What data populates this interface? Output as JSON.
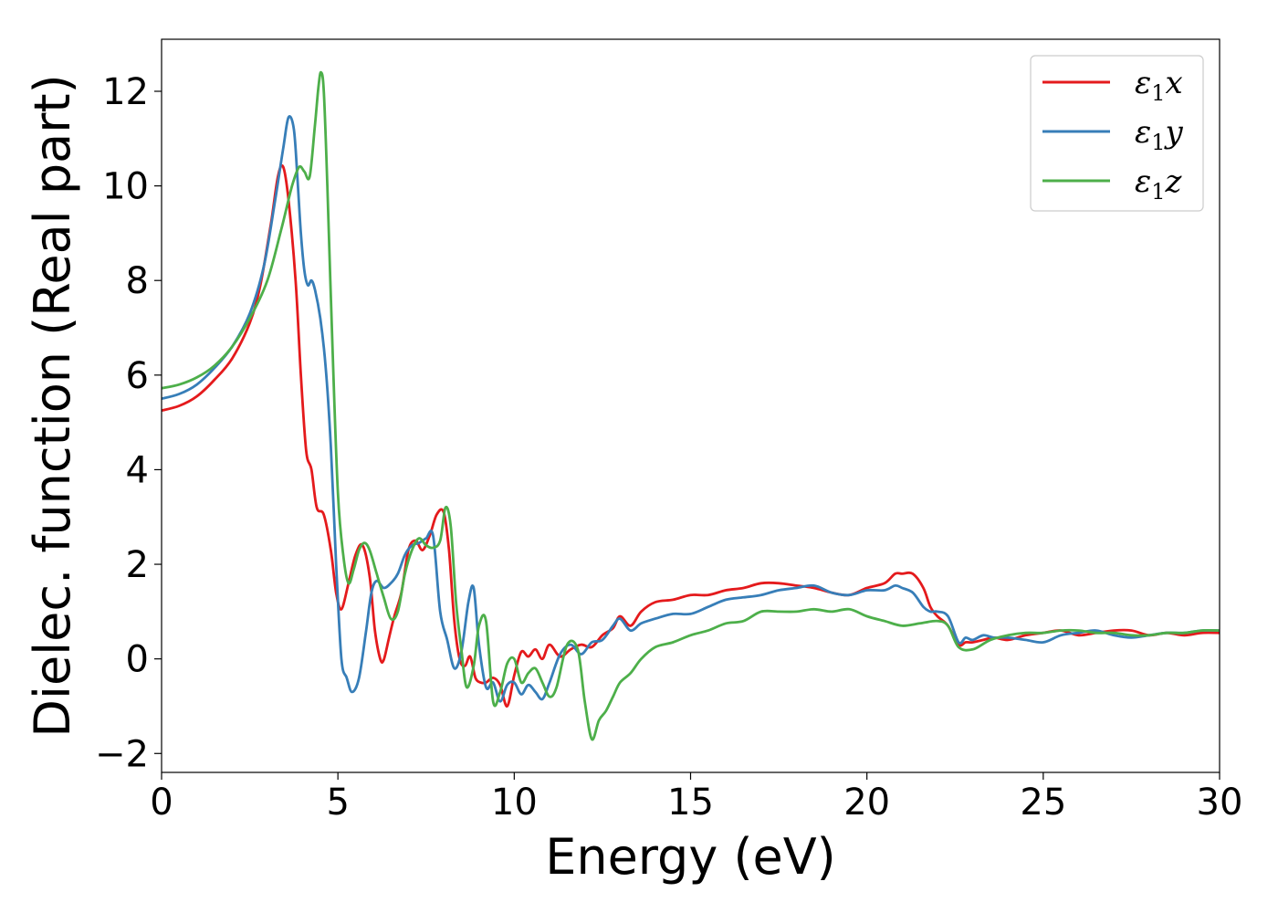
{
  "chart_data": {
    "type": "line",
    "title": "",
    "xlabel": "Energy (eV)",
    "ylabel": "Dielec. function (Real part)",
    "xlim": [
      0,
      30
    ],
    "ylim": [
      -2.4,
      13.1
    ],
    "xticks": [
      0,
      5,
      10,
      15,
      20,
      25,
      30
    ],
    "xtick_labels": [
      "0",
      "5",
      "10",
      "15",
      "20",
      "25",
      "30"
    ],
    "yticks": [
      -2,
      0,
      2,
      4,
      6,
      8,
      10,
      12
    ],
    "ytick_labels": [
      "−2",
      "0",
      "2",
      "4",
      "6",
      "8",
      "10",
      "12"
    ],
    "grid": false,
    "legend_position": "top-right",
    "series": [
      {
        "name": "ε1x",
        "name_base": "ε",
        "name_sub": "1",
        "name_var": "x",
        "color": "#e41a1c",
        "x": [
          0,
          0.5,
          1,
          1.5,
          2,
          2.5,
          2.8,
          3.1,
          3.3,
          3.45,
          3.6,
          3.8,
          3.95,
          4.1,
          4.25,
          4.4,
          4.6,
          4.8,
          4.95,
          5.1,
          5.3,
          5.5,
          5.7,
          5.9,
          6.05,
          6.2,
          6.3,
          6.45,
          6.6,
          6.8,
          7.0,
          7.2,
          7.4,
          7.6,
          7.8,
          8.0,
          8.15,
          8.3,
          8.45,
          8.6,
          8.75,
          8.9,
          9.05,
          9.2,
          9.4,
          9.6,
          9.8,
          10.0,
          10.2,
          10.4,
          10.6,
          10.8,
          11.0,
          11.3,
          11.6,
          11.9,
          12.2,
          12.5,
          12.8,
          13.0,
          13.3,
          13.6,
          14.0,
          14.5,
          15.0,
          15.5,
          16.0,
          16.5,
          17.0,
          17.5,
          18.0,
          18.5,
          19.0,
          19.5,
          20.0,
          20.5,
          20.8,
          21.0,
          21.3,
          21.6,
          21.8,
          22.0,
          22.3,
          22.6,
          22.8,
          23.0,
          23.3,
          23.6,
          24.0,
          24.5,
          25.0,
          25.5,
          26.0,
          26.5,
          27.0,
          27.5,
          28.0,
          28.5,
          29.0,
          29.5,
          30.0
        ],
        "y": [
          5.25,
          5.35,
          5.55,
          5.9,
          6.35,
          7.1,
          7.9,
          9.2,
          10.2,
          10.4,
          9.7,
          8.0,
          6.0,
          4.4,
          4.0,
          3.2,
          3.05,
          2.3,
          1.4,
          1.05,
          1.6,
          2.2,
          2.4,
          1.75,
          0.6,
          0.0,
          -0.02,
          0.45,
          0.9,
          1.4,
          2.3,
          2.5,
          2.3,
          2.6,
          3.05,
          3.1,
          2.3,
          0.8,
          0.0,
          -0.15,
          0.05,
          -0.4,
          -0.5,
          -0.5,
          -0.4,
          -0.55,
          -1.0,
          -0.35,
          0.15,
          0.05,
          0.2,
          0.0,
          0.3,
          0.05,
          0.2,
          0.3,
          0.25,
          0.5,
          0.65,
          0.9,
          0.7,
          1.0,
          1.2,
          1.25,
          1.35,
          1.35,
          1.45,
          1.5,
          1.6,
          1.6,
          1.55,
          1.5,
          1.4,
          1.35,
          1.5,
          1.6,
          1.8,
          1.8,
          1.8,
          1.5,
          1.1,
          0.9,
          0.7,
          0.3,
          0.35,
          0.35,
          0.4,
          0.45,
          0.4,
          0.5,
          0.55,
          0.6,
          0.5,
          0.55,
          0.6,
          0.6,
          0.5,
          0.55,
          0.5,
          0.55,
          0.55
        ]
      },
      {
        "name": "ε1y",
        "name_base": "ε",
        "name_sub": "1",
        "name_var": "y",
        "color": "#377eb8",
        "x": [
          0,
          0.5,
          1,
          1.5,
          2,
          2.5,
          2.9,
          3.2,
          3.45,
          3.6,
          3.75,
          3.85,
          3.95,
          4.05,
          4.15,
          4.25,
          4.35,
          4.5,
          4.65,
          4.8,
          4.95,
          5.1,
          5.25,
          5.4,
          5.6,
          5.8,
          5.95,
          6.1,
          6.3,
          6.5,
          6.7,
          6.9,
          7.1,
          7.3,
          7.5,
          7.7,
          7.9,
          8.1,
          8.3,
          8.5,
          8.7,
          8.85,
          9.0,
          9.2,
          9.4,
          9.6,
          9.8,
          10.0,
          10.2,
          10.4,
          10.6,
          10.8,
          11.0,
          11.3,
          11.6,
          11.9,
          12.2,
          12.5,
          12.8,
          13.0,
          13.3,
          13.6,
          14.0,
          14.5,
          15.0,
          15.5,
          16.0,
          16.5,
          17.0,
          17.5,
          18.0,
          18.5,
          19.0,
          19.5,
          20.0,
          20.5,
          20.8,
          21.0,
          21.3,
          21.6,
          21.8,
          22.0,
          22.3,
          22.6,
          22.8,
          23.0,
          23.3,
          23.6,
          24.0,
          24.5,
          25.0,
          25.5,
          26.0,
          26.5,
          27.0,
          27.5,
          28.0,
          28.5,
          29.0,
          29.5,
          30.0
        ],
        "y": [
          5.5,
          5.6,
          5.8,
          6.15,
          6.6,
          7.3,
          8.3,
          9.6,
          10.8,
          11.45,
          11.2,
          10.2,
          9.0,
          8.2,
          7.9,
          8.0,
          7.8,
          7.2,
          6.2,
          4.5,
          2.0,
          0.0,
          -0.4,
          -0.7,
          -0.4,
          0.6,
          1.4,
          1.65,
          1.5,
          1.6,
          1.8,
          2.2,
          2.4,
          2.45,
          2.55,
          2.6,
          1.0,
          0.4,
          -0.2,
          0.15,
          1.2,
          1.5,
          0.3,
          -0.6,
          -0.5,
          -0.9,
          -0.55,
          -0.5,
          -0.75,
          -0.55,
          -0.7,
          -0.85,
          -0.5,
          0.1,
          0.3,
          0.1,
          0.35,
          0.4,
          0.7,
          0.85,
          0.6,
          0.75,
          0.85,
          0.95,
          0.95,
          1.1,
          1.25,
          1.3,
          1.35,
          1.45,
          1.5,
          1.55,
          1.4,
          1.35,
          1.45,
          1.45,
          1.55,
          1.5,
          1.4,
          1.1,
          1.0,
          1.0,
          0.9,
          0.35,
          0.45,
          0.4,
          0.5,
          0.45,
          0.45,
          0.4,
          0.35,
          0.5,
          0.55,
          0.6,
          0.5,
          0.45,
          0.5,
          0.55,
          0.55,
          0.6,
          0.6
        ]
      },
      {
        "name": "ε1z",
        "name_base": "ε",
        "name_sub": "1",
        "name_var": "z",
        "color": "#4daf4a",
        "x": [
          0,
          0.5,
          1,
          1.5,
          2,
          2.5,
          3.0,
          3.4,
          3.7,
          3.9,
          4.05,
          4.2,
          4.35,
          4.45,
          4.52,
          4.6,
          4.7,
          4.85,
          5.0,
          5.15,
          5.3,
          5.45,
          5.6,
          5.75,
          5.9,
          6.1,
          6.3,
          6.5,
          6.7,
          6.9,
          7.1,
          7.3,
          7.5,
          7.7,
          7.9,
          8.05,
          8.2,
          8.35,
          8.5,
          8.65,
          8.85,
          9.0,
          9.2,
          9.4,
          9.6,
          9.8,
          10.0,
          10.2,
          10.4,
          10.6,
          10.8,
          11.0,
          11.2,
          11.5,
          11.8,
          12.0,
          12.2,
          12.4,
          12.6,
          12.8,
          13.0,
          13.3,
          13.6,
          14.0,
          14.5,
          15.0,
          15.5,
          16.0,
          16.5,
          17.0,
          17.5,
          18.0,
          18.5,
          19.0,
          19.5,
          20.0,
          20.5,
          21.0,
          21.5,
          22.0,
          22.3,
          22.6,
          23.0,
          23.5,
          24.0,
          24.5,
          25.0,
          25.5,
          26.0,
          26.5,
          27.0,
          27.5,
          28.0,
          28.5,
          29.0,
          29.5,
          30.0
        ],
        "y": [
          5.72,
          5.8,
          5.95,
          6.2,
          6.6,
          7.2,
          8.0,
          9.1,
          10.0,
          10.4,
          10.3,
          10.2,
          11.3,
          12.1,
          12.4,
          12.0,
          10.0,
          6.5,
          3.5,
          2.2,
          1.6,
          1.9,
          2.3,
          2.45,
          2.3,
          1.8,
          1.3,
          0.85,
          1.0,
          1.8,
          2.3,
          2.55,
          2.4,
          2.35,
          2.5,
          3.2,
          2.8,
          1.2,
          0.2,
          -0.6,
          -0.15,
          0.7,
          0.8,
          -0.9,
          -0.7,
          -0.1,
          0.0,
          -0.5,
          -0.3,
          -0.2,
          -0.5,
          -0.8,
          -0.6,
          0.3,
          0.2,
          -0.9,
          -1.7,
          -1.3,
          -1.1,
          -0.8,
          -0.5,
          -0.3,
          0.0,
          0.25,
          0.35,
          0.5,
          0.6,
          0.75,
          0.8,
          1.0,
          1.0,
          1.0,
          1.05,
          1.0,
          1.05,
          0.9,
          0.8,
          0.7,
          0.75,
          0.8,
          0.7,
          0.25,
          0.2,
          0.4,
          0.5,
          0.55,
          0.55,
          0.6,
          0.6,
          0.55,
          0.55,
          0.5,
          0.5,
          0.55,
          0.55,
          0.6,
          0.6
        ]
      }
    ]
  }
}
